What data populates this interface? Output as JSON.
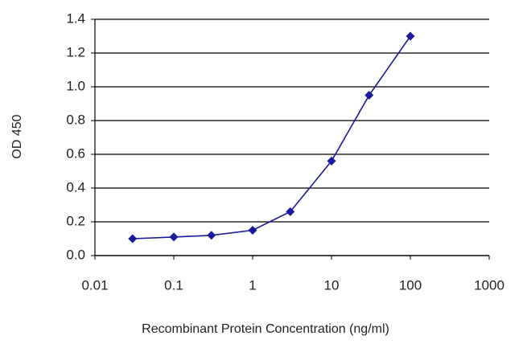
{
  "chart_data": {
    "type": "line",
    "x_label": "Recombinant Protein Concentration (ng/ml)",
    "y_label": "OD 450",
    "x": [
      0.03,
      0.1,
      0.3,
      1,
      3,
      10,
      30,
      100
    ],
    "series": [
      {
        "name": "OD 450",
        "color": "#1a1a9c",
        "values": [
          0.1,
          0.11,
          0.12,
          0.15,
          0.26,
          0.56,
          0.95,
          1.3
        ]
      }
    ],
    "xscale": "log",
    "xlim": [
      0.01,
      1000
    ],
    "xticks": [
      0.01,
      0.1,
      1,
      10,
      100,
      1000
    ],
    "ylim": [
      0,
      1.4
    ],
    "yticks": [
      {
        "value": 0,
        "label": "0.0"
      },
      0.2,
      0.4,
      0.6,
      0.8,
      {
        "value": 1,
        "label": "1.0"
      },
      1.2,
      1.4
    ],
    "grid": true
  }
}
